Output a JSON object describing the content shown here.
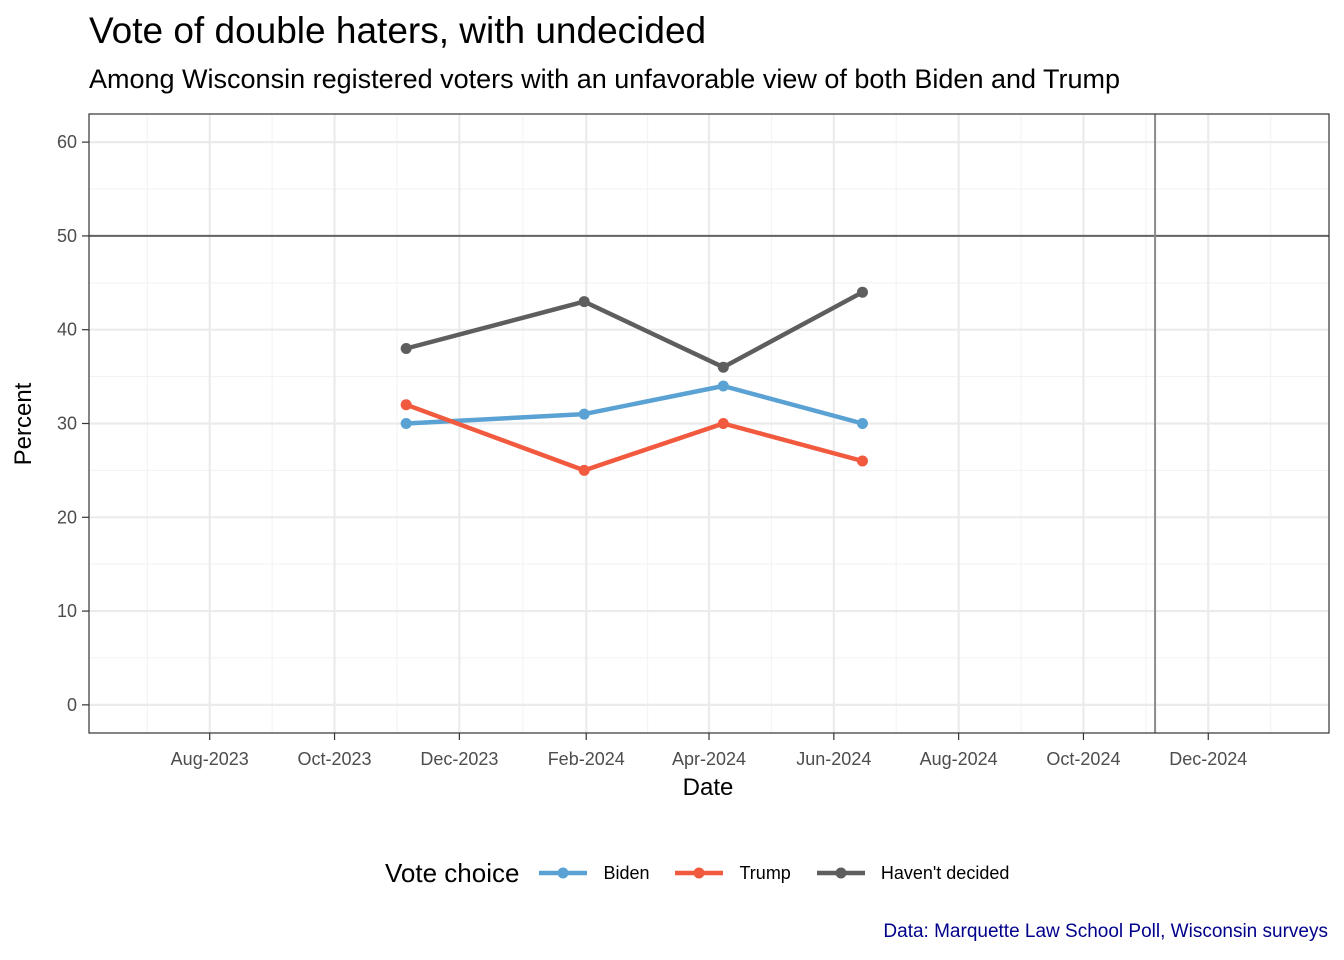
{
  "chart_data": {
    "type": "line",
    "title": "Vote of double haters, with undecided",
    "subtitle": "Among Wisconsin registered voters with an unfavorable view of both Biden and Trump",
    "xlabel": "Date",
    "ylabel": "Percent",
    "caption": "Data: Marquette Law School Poll, Wisconsin surveys",
    "ylim": [
      -3,
      63
    ],
    "yticks": [
      0,
      10,
      20,
      30,
      40,
      50,
      60
    ],
    "xlim": [
      "2023-06-03",
      "2025-01-29"
    ],
    "xticks": [
      {
        "date": "2023-08-01",
        "label": "Aug-2023"
      },
      {
        "date": "2023-10-01",
        "label": "Oct-2023"
      },
      {
        "date": "2023-12-01",
        "label": "Dec-2023"
      },
      {
        "date": "2024-02-01",
        "label": "Feb-2024"
      },
      {
        "date": "2024-04-01",
        "label": "Apr-2024"
      },
      {
        "date": "2024-06-01",
        "label": "Jun-2024"
      },
      {
        "date": "2024-08-01",
        "label": "Aug-2024"
      },
      {
        "date": "2024-10-01",
        "label": "Oct-2024"
      },
      {
        "date": "2024-12-01",
        "label": "Dec-2024"
      }
    ],
    "reference_lines": {
      "hline_y": 50,
      "vline_x": "2024-11-05"
    },
    "grid": true,
    "legend": {
      "title": "Vote choice",
      "position": "bottom"
    },
    "series": [
      {
        "name": "Biden",
        "color": "#5BA2D4",
        "x": [
          "2023-11-05",
          "2024-01-31",
          "2024-04-08",
          "2024-06-15"
        ],
        "values": [
          30,
          31,
          34,
          30
        ]
      },
      {
        "name": "Trump",
        "color": "#F15A3F",
        "x": [
          "2023-11-05",
          "2024-01-31",
          "2024-04-08",
          "2024-06-15"
        ],
        "values": [
          32,
          25,
          30,
          26
        ]
      },
      {
        "name": "Haven't decided",
        "color": "#5E5E5E",
        "x": [
          "2023-11-05",
          "2024-01-31",
          "2024-04-08",
          "2024-06-15"
        ],
        "values": [
          38,
          43,
          36,
          44
        ]
      }
    ]
  }
}
